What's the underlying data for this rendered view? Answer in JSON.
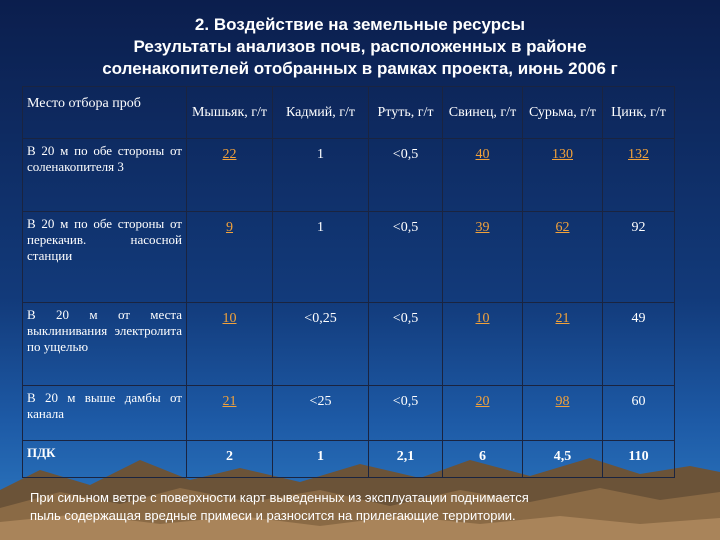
{
  "title": {
    "line1": "2. Воздействие на земельные ресурсы",
    "line2": "Результаты анализов почв, расположенных в районе",
    "line3": "соленакопителей  отобранных в рамках проекта, июнь 2006 г"
  },
  "table": {
    "headers": [
      "Место отбора проб",
      "Мышьяк, г/т",
      "Кадмий, г/т",
      "Ртуть, г/т",
      "Свинец, г/т",
      "Сурьма, г/т",
      "Цинк, г/т"
    ],
    "rows": [
      {
        "location": "В 20 м по обе стороны от соленакопителя 3",
        "values": [
          "22",
          "1",
          "<0,5",
          "40",
          "130",
          "132"
        ]
      },
      {
        "location": "В 20 м по обе стороны от перекачив. насосной станции",
        "values": [
          "9",
          "1",
          "<0,5",
          "39",
          "62",
          "92"
        ]
      },
      {
        "location": "В 20 м от места выклинивания электролита по ущелью",
        "values": [
          "10",
          "<0,25",
          "<0,5",
          "10",
          "21",
          "49"
        ]
      },
      {
        "location": "В 20 м выше дамбы от канала",
        "values": [
          "21",
          "<25",
          "<0,5",
          "20",
          "98",
          "60"
        ]
      },
      {
        "location": "ПДК",
        "values": [
          "2",
          "1",
          "2,1",
          "6",
          "4,5",
          "110"
        ]
      }
    ]
  },
  "footer": {
    "line1": "При сильном ветре с поверхности карт выведенных из эксплуатации поднимается",
    "line2": "пыль содержащая вредные примеси и разносится на прилегающие территории."
  },
  "colors": {
    "exceeded": "#f2a23a",
    "background": "#123a7a"
  }
}
